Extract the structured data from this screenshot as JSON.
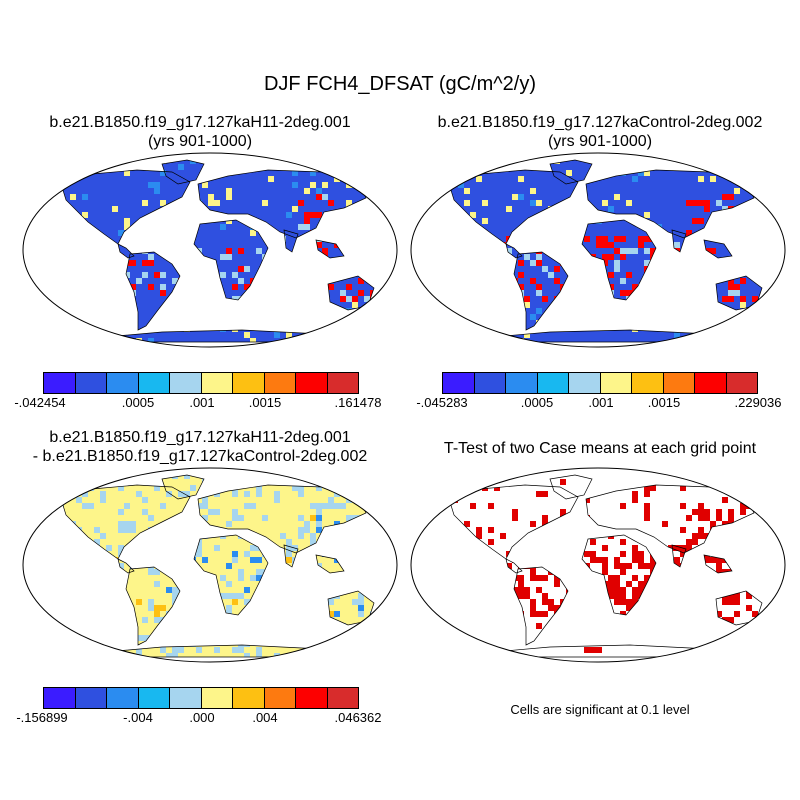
{
  "title": "DJF FCH4_DFSAT (gC/m^2/y)",
  "panels": [
    {
      "line1": "b.e21.B1850.f19_g17.127kaH11-2deg.001",
      "line2": "(yrs 901-1000)"
    },
    {
      "line1": "b.e21.B1850.f19_g17.127kaControl-2deg.002",
      "line2": "(yrs 901-1000)"
    },
    {
      "line1": "b.e21.B1850.f19_g17.127kaH11-2deg.001",
      "line2": "- b.e21.B1850.f19_g17.127kaControl-2deg.002"
    },
    {
      "line1": "T-Test of two Case means at each grid point",
      "line2": ""
    }
  ],
  "colorbars": [
    {
      "labels": [
        "-.042454",
        ".0005",
        ".001",
        ".0015",
        ".161478"
      ]
    },
    {
      "labels": [
        "-.045283",
        ".0005",
        ".001",
        ".0015",
        ".229036"
      ]
    },
    {
      "labels": [
        "-.156899",
        "-.004",
        ".000",
        ".004",
        ".046362"
      ]
    }
  ],
  "palette": [
    "#3b1cff",
    "#2f50e0",
    "#2b8cf0",
    "#18b8f0",
    "#a6d5ef",
    "#fdf58a",
    "#fdc012",
    "#fd7a10",
    "#fd0000",
    "#d82c2c"
  ],
  "significance_note": "Cells are significant at 0.1 level",
  "colors": {
    "base_case": "#2f50e0",
    "diff_base": "#fdf58a",
    "diff_light": "#a6d5ef",
    "ttest": "#e00000"
  }
}
